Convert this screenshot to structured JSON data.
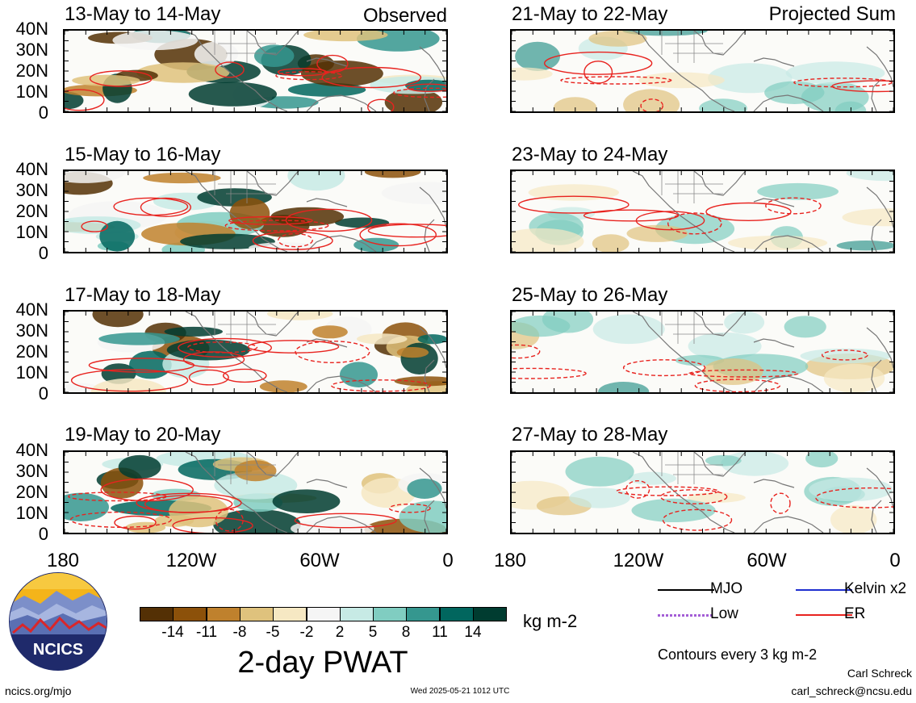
{
  "panels_left": [
    {
      "title": "13-May to 14-May",
      "tag": "Observed"
    },
    {
      "title": "15-May to 16-May",
      "tag": ""
    },
    {
      "title": "17-May to 18-May",
      "tag": ""
    },
    {
      "title": "19-May to 20-May",
      "tag": ""
    }
  ],
  "panels_right": [
    {
      "title": "21-May to 22-May",
      "tag": "Projected Sum"
    },
    {
      "title": "23-May to 24-May",
      "tag": ""
    },
    {
      "title": "25-May to 26-May",
      "tag": ""
    },
    {
      "title": "27-May to 28-May",
      "tag": ""
    }
  ],
  "lat_labels": [
    "40N",
    "30N",
    "20N",
    "10N",
    "0"
  ],
  "lon_labels": [
    "180",
    "120W",
    "60W",
    "0"
  ],
  "colorbar": {
    "title": "2-day PWAT",
    "units": "kg m-2",
    "tick_labels": [
      "-14",
      "-11",
      "-8",
      "-5",
      "-2",
      "2",
      "5",
      "8",
      "11",
      "14"
    ],
    "colors": [
      "#543005",
      "#8c510a",
      "#bf812d",
      "#dfc27d",
      "#f6e8c3",
      "#f5f5f5",
      "#c7eae5",
      "#80cdc1",
      "#35978f",
      "#01665e",
      "#003c30"
    ]
  },
  "legend": {
    "items": [
      {
        "label": "MJO",
        "color": "#000000",
        "style": "solid"
      },
      {
        "label": "Kelvin x2",
        "color": "#1f2fd0",
        "style": "solid"
      },
      {
        "label": "Low",
        "color": "#a45ed6",
        "style": "dotted"
      },
      {
        "label": "ER",
        "color": "#e8231f",
        "style": "solid"
      }
    ],
    "note": "Contours every 3 kg m-2"
  },
  "logo_text": "NCICS",
  "footer": {
    "url": "ncics.org/mjo",
    "timestamp": "Wed 2025-05-21 1012 UTC",
    "author": "Carl Schreck",
    "email": "carl_schreck@ncsu.edu"
  }
}
